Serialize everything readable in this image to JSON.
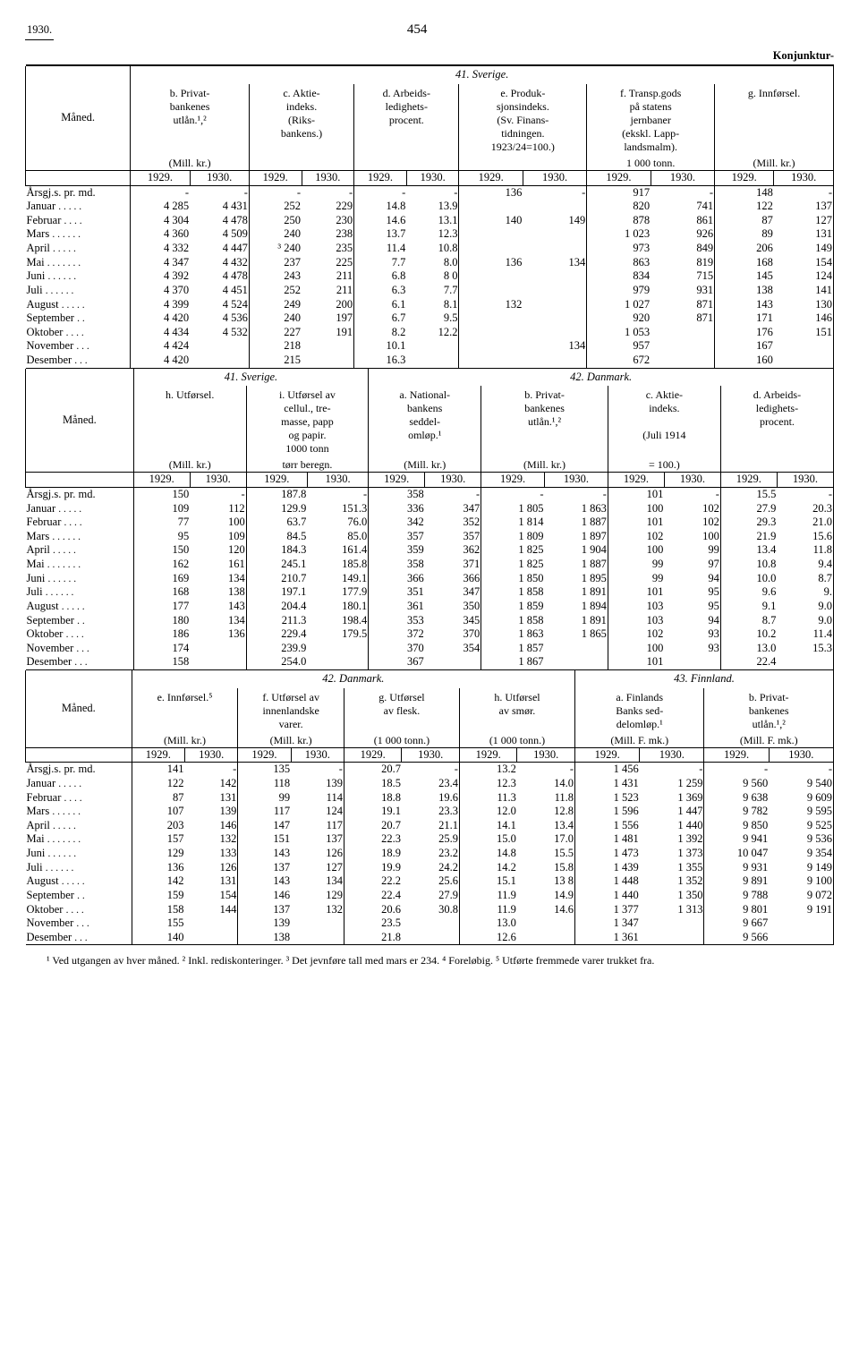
{
  "page": {
    "year": "1930.",
    "number": "454",
    "section": "Konjunktur-"
  },
  "labels": {
    "maned": "Måned.",
    "arsgj": "Årsgj.s. pr. md.",
    "months": [
      "Januar",
      "Februar",
      "Mars",
      "April",
      "Mai",
      "Juni",
      "Juli",
      "August",
      "September",
      "Oktober",
      "November",
      "Desember"
    ]
  },
  "t1": {
    "section": "41.   Sverige.",
    "cols": {
      "b": {
        "t": "b.  Privat-\nbankenes\nutlån.¹,²",
        "u": "(Mill. kr.)"
      },
      "c": {
        "t": "c.  Aktie-\nindeks.\n(Riks-\nbankens.)",
        "u": ""
      },
      "d": {
        "t": "d.  Arbeids-\nledighets-\nprocent.",
        "u": ""
      },
      "e": {
        "t": "e. Produk-\nsjonsindeks.\n(Sv. Finans-\ntidningen.\n1923/24=100.)",
        "u": ""
      },
      "f": {
        "t": "f. Transp.gods\npå statens\njernbaner\n(ekskl. Lapp-\nlandsmalm).",
        "u": "1 000 tonn."
      },
      "g": {
        "t": "g.  Innførsel.",
        "u": "(Mill. kr.)"
      }
    },
    "years": [
      "1929.",
      "1930."
    ],
    "rows": [
      {
        "m": "Årsgj.s. pr. md.",
        "b": [
          "-",
          "-"
        ],
        "c": [
          "-",
          "-"
        ],
        "d": [
          "-",
          "-"
        ],
        "e": [
          "136",
          "-"
        ],
        "f": [
          "917",
          "-"
        ],
        "g": [
          "148",
          "-"
        ]
      },
      {
        "m": "Januar",
        "b": [
          "4 285",
          "4 431"
        ],
        "c": [
          "252",
          "229"
        ],
        "d": [
          "14.8",
          "13.9"
        ],
        "e": [
          "",
          ""
        ],
        "f": [
          "820",
          "741"
        ],
        "g": [
          "122",
          "137"
        ]
      },
      {
        "m": "Februar",
        "b": [
          "4 304",
          "4 478"
        ],
        "c": [
          "250",
          "230"
        ],
        "d": [
          "14.6",
          "13.1"
        ],
        "e": [
          "140",
          "149"
        ],
        "f": [
          "878",
          "861"
        ],
        "g": [
          "87",
          "127"
        ]
      },
      {
        "m": "Mars",
        "b": [
          "4 360",
          "4 509"
        ],
        "c": [
          "240",
          "238"
        ],
        "d": [
          "13.7",
          "12.3"
        ],
        "e": [
          "",
          ""
        ],
        "f": [
          "1 023",
          "926"
        ],
        "g": [
          "89",
          "131"
        ]
      },
      {
        "m": "April",
        "b": [
          "4 332",
          "4 447"
        ],
        "c": [
          "³ 240",
          "235"
        ],
        "d": [
          "11.4",
          "10.8"
        ],
        "e": [
          "",
          ""
        ],
        "f": [
          "973",
          "849"
        ],
        "g": [
          "206",
          "149"
        ]
      },
      {
        "m": "Mai",
        "b": [
          "4 347",
          "4 432"
        ],
        "c": [
          "237",
          "225"
        ],
        "d": [
          "7.7",
          "8.0"
        ],
        "e": [
          "136",
          "134"
        ],
        "f": [
          "863",
          "819"
        ],
        "g": [
          "168",
          "154"
        ]
      },
      {
        "m": "Juni",
        "b": [
          "4 392",
          "4 478"
        ],
        "c": [
          "243",
          "211"
        ],
        "d": [
          "6.8",
          "8 0"
        ],
        "e": [
          "",
          ""
        ],
        "f": [
          "834",
          "715"
        ],
        "g": [
          "145",
          "124"
        ]
      },
      {
        "m": "Juli",
        "b": [
          "4 370",
          "4 451"
        ],
        "c": [
          "252",
          "211"
        ],
        "d": [
          "6.3",
          "7.7"
        ],
        "e": [
          "",
          ""
        ],
        "f": [
          "979",
          "931"
        ],
        "g": [
          "138",
          "141"
        ]
      },
      {
        "m": "August",
        "b": [
          "4 399",
          "4 524"
        ],
        "c": [
          "249",
          "200"
        ],
        "d": [
          "6.1",
          "8.1"
        ],
        "e": [
          "132",
          ""
        ],
        "f": [
          "1 027",
          "871"
        ],
        "g": [
          "143",
          "130"
        ]
      },
      {
        "m": "September",
        "b": [
          "4 420",
          "4 536"
        ],
        "c": [
          "240",
          "197"
        ],
        "d": [
          "6.7",
          "9.5"
        ],
        "e": [
          "",
          ""
        ],
        "f": [
          "920",
          "871"
        ],
        "g": [
          "171",
          "146"
        ]
      },
      {
        "m": "Oktober",
        "b": [
          "4 434",
          "4 532"
        ],
        "c": [
          "227",
          "191"
        ],
        "d": [
          "8.2",
          "12.2"
        ],
        "e": [
          "",
          ""
        ],
        "f": [
          "1 053",
          ""
        ],
        "g": [
          "176",
          "151"
        ]
      },
      {
        "m": "November",
        "b": [
          "4 424",
          ""
        ],
        "c": [
          "218",
          ""
        ],
        "d": [
          "10.1",
          ""
        ],
        "e": [
          "",
          "134"
        ],
        "f": [
          "957",
          ""
        ],
        "g": [
          "167",
          ""
        ]
      },
      {
        "m": "Desember",
        "b": [
          "4 420",
          ""
        ],
        "c": [
          "215",
          ""
        ],
        "d": [
          "16.3",
          ""
        ],
        "e": [
          "",
          ""
        ],
        "f": [
          "672",
          ""
        ],
        "g": [
          "160",
          ""
        ]
      }
    ]
  },
  "t2": {
    "sec_left": "41.   Sverige.",
    "sec_right": "42.   Danmark.",
    "cols": {
      "h": {
        "t": "h.  Utførsel.",
        "u": "(Mill. kr.)"
      },
      "i": {
        "t": "i. Utførsel av\ncellul., tre-\nmasse, papp\nog papir.\n1000 tonn",
        "u": "tørr beregn."
      },
      "a": {
        "t": "a.  National-\nbankens\nseddel-\nomløp.¹",
        "u": "(Mill. kr.)"
      },
      "b": {
        "t": "b.  Privat-\nbankenes\nutlån.¹,²",
        "u": "(Mill. kr.)"
      },
      "c": {
        "t": "c.  Aktie-\nindeks.\n\n(Juli 1914",
        "u": "= 100.)"
      },
      "d": {
        "t": "d.  Arbeids-\nledighets-\nprocent.",
        "u": ""
      }
    },
    "years": [
      "1929.",
      "1930."
    ],
    "rows": [
      {
        "m": "Årsgj.s. pr. md.",
        "h": [
          "150",
          "-"
        ],
        "i": [
          "187.8",
          "-"
        ],
        "a": [
          "358",
          "-"
        ],
        "b": [
          "-",
          "-"
        ],
        "c": [
          "101",
          "-"
        ],
        "d": [
          "15.5",
          "-"
        ]
      },
      {
        "m": "Januar",
        "h": [
          "109",
          "112"
        ],
        "i": [
          "129.9",
          "151.3"
        ],
        "a": [
          "336",
          "347"
        ],
        "b": [
          "1 805",
          "1 863"
        ],
        "c": [
          "100",
          "102"
        ],
        "d": [
          "27.9",
          "20.3"
        ]
      },
      {
        "m": "Februar",
        "h": [
          "77",
          "100"
        ],
        "i": [
          "63.7",
          "76.0"
        ],
        "a": [
          "342",
          "352"
        ],
        "b": [
          "1 814",
          "1 887"
        ],
        "c": [
          "101",
          "102"
        ],
        "d": [
          "29.3",
          "21.0"
        ]
      },
      {
        "m": "Mars",
        "h": [
          "95",
          "109"
        ],
        "i": [
          "84.5",
          "85.0"
        ],
        "a": [
          "357",
          "357"
        ],
        "b": [
          "1 809",
          "1 897"
        ],
        "c": [
          "102",
          "100"
        ],
        "d": [
          "21.9",
          "15.6"
        ]
      },
      {
        "m": "April",
        "h": [
          "150",
          "120"
        ],
        "i": [
          "184.3",
          "161.4"
        ],
        "a": [
          "359",
          "362"
        ],
        "b": [
          "1 825",
          "1 904"
        ],
        "c": [
          "100",
          "99"
        ],
        "d": [
          "13.4",
          "11.8"
        ]
      },
      {
        "m": "Mai",
        "h": [
          "162",
          "161"
        ],
        "i": [
          "245.1",
          "185.8"
        ],
        "a": [
          "358",
          "371"
        ],
        "b": [
          "1 825",
          "1 887"
        ],
        "c": [
          "99",
          "97"
        ],
        "d": [
          "10.8",
          "9.4"
        ]
      },
      {
        "m": "Juni",
        "h": [
          "169",
          "134"
        ],
        "i": [
          "210.7",
          "149.1"
        ],
        "a": [
          "366",
          "366"
        ],
        "b": [
          "1 850",
          "1 895"
        ],
        "c": [
          "99",
          "94"
        ],
        "d": [
          "10.0",
          "8.7"
        ]
      },
      {
        "m": "Juli",
        "h": [
          "168",
          "138"
        ],
        "i": [
          "197.1",
          "177.9"
        ],
        "a": [
          "351",
          "347"
        ],
        "b": [
          "1 858",
          "1 891"
        ],
        "c": [
          "101",
          "95"
        ],
        "d": [
          "9.6",
          "9."
        ]
      },
      {
        "m": "August",
        "h": [
          "177",
          "143"
        ],
        "i": [
          "204.4",
          "180.1"
        ],
        "a": [
          "361",
          "350"
        ],
        "b": [
          "1 859",
          "1 894"
        ],
        "c": [
          "103",
          "95"
        ],
        "d": [
          "9.1",
          "9.0"
        ]
      },
      {
        "m": "September",
        "h": [
          "180",
          "134"
        ],
        "i": [
          "211.3",
          "198.4"
        ],
        "a": [
          "353",
          "345"
        ],
        "b": [
          "1 858",
          "1 891"
        ],
        "c": [
          "103",
          "94"
        ],
        "d": [
          "8.7",
          "9.0"
        ]
      },
      {
        "m": "Oktober",
        "h": [
          "186",
          "136"
        ],
        "i": [
          "229.4",
          "179.5"
        ],
        "a": [
          "372",
          "370"
        ],
        "b": [
          "1 863",
          "1 865"
        ],
        "c": [
          "102",
          "93"
        ],
        "d": [
          "10.2",
          "11.4"
        ]
      },
      {
        "m": "November",
        "h": [
          "174",
          ""
        ],
        "i": [
          "239.9",
          ""
        ],
        "a": [
          "370",
          "354"
        ],
        "b": [
          "1 857",
          ""
        ],
        "c": [
          "100",
          "93"
        ],
        "d": [
          "13.0",
          "15.3"
        ]
      },
      {
        "m": "Desember",
        "h": [
          "158",
          ""
        ],
        "i": [
          "254.0",
          ""
        ],
        "a": [
          "367",
          ""
        ],
        "b": [
          "1 867",
          ""
        ],
        "c": [
          "101",
          ""
        ],
        "d": [
          "22.4",
          ""
        ]
      }
    ]
  },
  "t3": {
    "sec_left": "42.   Danmark.",
    "sec_right": "43.   Finnland.",
    "cols": {
      "e": {
        "t": "e. Innførsel.⁵",
        "u": "(Mill. kr.)"
      },
      "f": {
        "t": "f. Utførsel av\ninnenlandske\nvarer.",
        "u": "(Mill. kr.)"
      },
      "g": {
        "t": "g. Utførsel\nav flesk.",
        "u": "(1 000 tonn.)"
      },
      "h": {
        "t": "h. Utførsel\nav smør.",
        "u": "(1 000 tonn.)"
      },
      "a": {
        "t": "a. Finlands\nBanks sed-\ndelomløp.¹",
        "u": "(Mill. F. mk.)"
      },
      "b": {
        "t": "b.  Privat-\nbankenes\nutlån.¹,²",
        "u": "(Mill. F. mk.)"
      }
    },
    "years": [
      "1929.",
      "1930."
    ],
    "rows": [
      {
        "m": "Årsgj.s. pr. md.",
        "e": [
          "141",
          "-"
        ],
        "f": [
          "135",
          "-"
        ],
        "g": [
          "20.7",
          "-"
        ],
        "h": [
          "13.2",
          "-"
        ],
        "a": [
          "1 456",
          "-"
        ],
        "b": [
          "-",
          "-"
        ]
      },
      {
        "m": "Januar",
        "e": [
          "122",
          "142"
        ],
        "f": [
          "118",
          "139"
        ],
        "g": [
          "18.5",
          "23.4"
        ],
        "h": [
          "12.3",
          "14.0"
        ],
        "a": [
          "1 431",
          "1 259"
        ],
        "b": [
          "9 560",
          "9 540"
        ]
      },
      {
        "m": "Februar",
        "e": [
          "87",
          "131"
        ],
        "f": [
          "99",
          "114"
        ],
        "g": [
          "18.8",
          "19.6"
        ],
        "h": [
          "11.3",
          "11.8"
        ],
        "a": [
          "1 523",
          "1 369"
        ],
        "b": [
          "9 638",
          "9 609"
        ]
      },
      {
        "m": "Mars",
        "e": [
          "107",
          "139"
        ],
        "f": [
          "117",
          "124"
        ],
        "g": [
          "19.1",
          "23.3"
        ],
        "h": [
          "12.0",
          "12.8"
        ],
        "a": [
          "1 596",
          "1 447"
        ],
        "b": [
          "9 782",
          "9 595"
        ]
      },
      {
        "m": "April",
        "e": [
          "203",
          "146"
        ],
        "f": [
          "147",
          "117"
        ],
        "g": [
          "20.7",
          "21.1"
        ],
        "h": [
          "14.1",
          "13.4"
        ],
        "a": [
          "1 556",
          "1 440"
        ],
        "b": [
          "9 850",
          "9 525"
        ]
      },
      {
        "m": "Mai",
        "e": [
          "157",
          "132"
        ],
        "f": [
          "151",
          "137"
        ],
        "g": [
          "22.3",
          "25.9"
        ],
        "h": [
          "15.0",
          "17.0"
        ],
        "a": [
          "1 481",
          "1 392"
        ],
        "b": [
          "9 941",
          "9 536"
        ]
      },
      {
        "m": "Juni",
        "e": [
          "129",
          "133"
        ],
        "f": [
          "143",
          "126"
        ],
        "g": [
          "18.9",
          "23.2"
        ],
        "h": [
          "14.8",
          "15.5"
        ],
        "a": [
          "1 473",
          "1 373"
        ],
        "b": [
          "10 047",
          "9 354"
        ]
      },
      {
        "m": "Juli",
        "e": [
          "136",
          "126"
        ],
        "f": [
          "137",
          "127"
        ],
        "g": [
          "19.9",
          "24.2"
        ],
        "h": [
          "14.2",
          "15.8"
        ],
        "a": [
          "1 439",
          "1 355"
        ],
        "b": [
          "9 931",
          "9 149"
        ]
      },
      {
        "m": "August",
        "e": [
          "142",
          "131"
        ],
        "f": [
          "143",
          "134"
        ],
        "g": [
          "22.2",
          "25.6"
        ],
        "h": [
          "15.1",
          "13 8"
        ],
        "a": [
          "1 448",
          "1 352"
        ],
        "b": [
          "9 891",
          "9 100"
        ]
      },
      {
        "m": "September",
        "e": [
          "159",
          "154"
        ],
        "f": [
          "146",
          "129"
        ],
        "g": [
          "22.4",
          "27.9"
        ],
        "h": [
          "11.9",
          "14.9"
        ],
        "a": [
          "1 440",
          "1 350"
        ],
        "b": [
          "9 788",
          "9 072"
        ]
      },
      {
        "m": "Oktober",
        "e": [
          "158",
          "144"
        ],
        "f": [
          "137",
          "132"
        ],
        "g": [
          "20.6",
          "30.8"
        ],
        "h": [
          "11.9",
          "14.6"
        ],
        "a": [
          "1 377",
          "1 313"
        ],
        "b": [
          "9 801",
          "9 191"
        ]
      },
      {
        "m": "November",
        "e": [
          "155",
          ""
        ],
        "f": [
          "139",
          ""
        ],
        "g": [
          "23.5",
          ""
        ],
        "h": [
          "13.0",
          ""
        ],
        "a": [
          "1 347",
          ""
        ],
        "b": [
          "9 667",
          ""
        ]
      },
      {
        "m": "Desember",
        "e": [
          "140",
          ""
        ],
        "f": [
          "138",
          ""
        ],
        "g": [
          "21.8",
          ""
        ],
        "h": [
          "12.6",
          ""
        ],
        "a": [
          "1 361",
          ""
        ],
        "b": [
          "9 566",
          ""
        ]
      }
    ]
  },
  "footnotes": "¹ Ved utgangen av hver måned.   ² Inkl. rediskonteringer.   ³ Det jevnføre tall med mars er 234.   ⁴ Foreløbig.   ⁵ Utførte fremmede varer trukket fra."
}
